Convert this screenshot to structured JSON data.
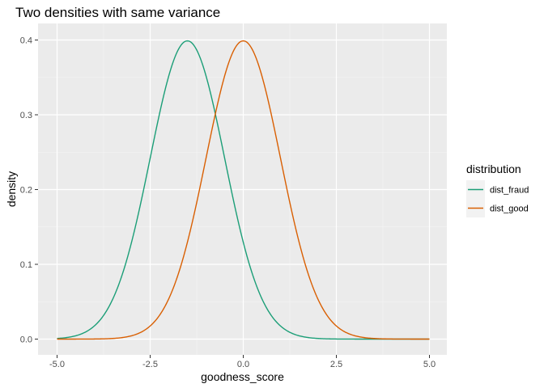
{
  "chart_data": {
    "type": "line",
    "title": "Two densities with same variance",
    "xlabel": "goodness_score",
    "ylabel": "density",
    "xlim": [
      -5.0,
      5.0
    ],
    "ylim": [
      0.0,
      0.4
    ],
    "x_ticks": [
      "-5.0",
      "-2.5",
      "0.0",
      "2.5",
      "5.0"
    ],
    "y_ticks": [
      "0.0",
      "0.1",
      "0.2",
      "0.3",
      "0.4"
    ],
    "grid": true,
    "legend": {
      "title": "distribution",
      "placement": "right"
    },
    "series": [
      {
        "name": "dist_fraud",
        "color": "#1b9e77",
        "x": [
          -5.0,
          -4.5,
          -4.0,
          -3.5,
          -3.0,
          -2.5,
          -2.0,
          -1.5,
          -1.0,
          -0.5,
          0.0,
          0.5,
          1.0,
          1.5,
          2.0,
          2.5,
          3.0,
          3.5,
          4.0,
          4.5,
          5.0
        ],
        "y": [
          0.0009,
          0.0044,
          0.0175,
          0.054,
          0.1295,
          0.242,
          0.3521,
          0.3989,
          0.3521,
          0.242,
          0.1295,
          0.054,
          0.0175,
          0.0044,
          0.0009,
          0.0001,
          0.0,
          0.0,
          0.0,
          0.0,
          0.0
        ]
      },
      {
        "name": "dist_good",
        "color": "#d95f02",
        "x": [
          -5.0,
          -4.5,
          -4.0,
          -3.5,
          -3.0,
          -2.5,
          -2.0,
          -1.5,
          -1.0,
          -0.5,
          0.0,
          0.5,
          1.0,
          1.5,
          2.0,
          2.5,
          3.0,
          3.5,
          4.0,
          4.5,
          5.0
        ],
        "y": [
          0.0,
          0.0,
          0.0001,
          0.0009,
          0.0044,
          0.0175,
          0.054,
          0.1295,
          0.242,
          0.3521,
          0.3989,
          0.3521,
          0.242,
          0.1295,
          0.054,
          0.0175,
          0.0044,
          0.0009,
          0.0001,
          0.0,
          0.0
        ]
      }
    ]
  }
}
